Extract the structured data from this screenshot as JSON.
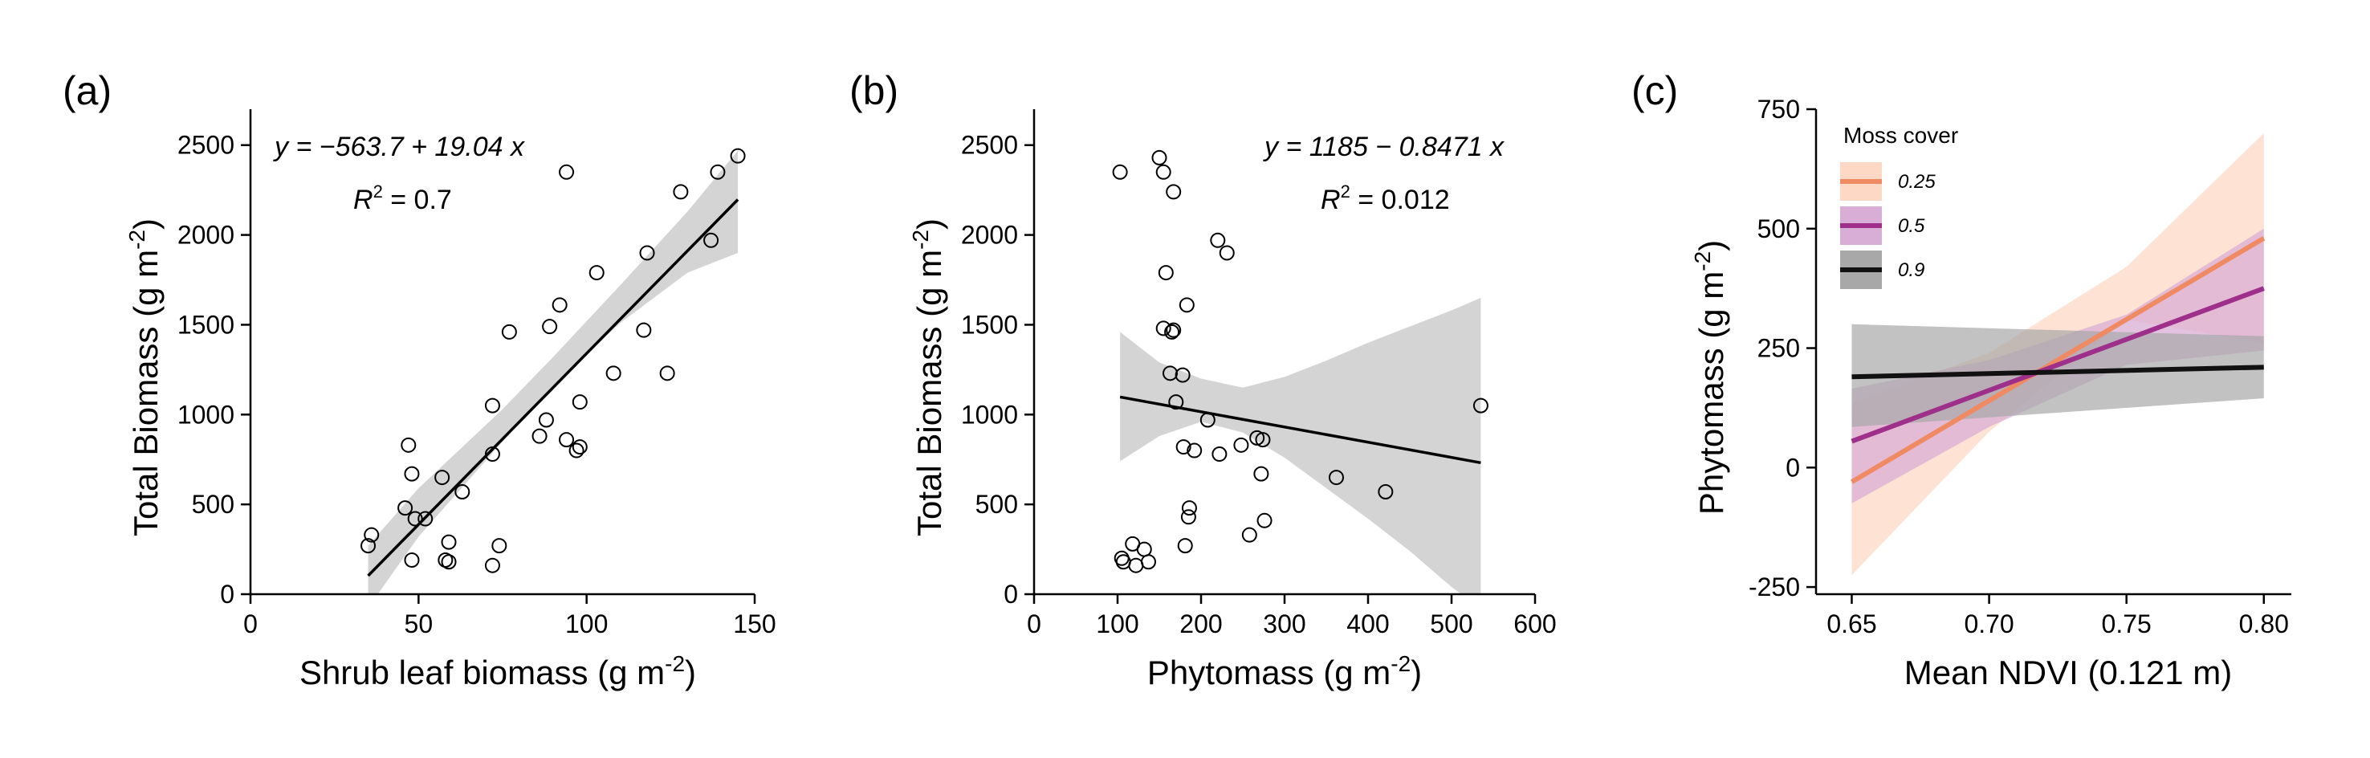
{
  "chart_data": [
    {
      "type": "scatter",
      "panel_label": "(a)",
      "xlabel": "Shrub leaf biomass (g m",
      "xlabel_sup": "-2",
      "xlabel_end": ")",
      "ylabel": "Total Biomass (g m",
      "ylabel_sup": "-2",
      "ylabel_end": ")",
      "xlim": [
        0,
        150
      ],
      "ylim": [
        0,
        2700
      ],
      "xticks": [
        0,
        50,
        100,
        150
      ],
      "yticks": [
        0,
        500,
        1000,
        1500,
        2000,
        2500
      ],
      "equation": "y = −563.7 + 19.04 x",
      "r2_label": "R",
      "r2_sup": "2",
      "r2_value": " = 0.7",
      "fit": {
        "intercept": -563.7,
        "slope": 19.04,
        "x_range": [
          35,
          145
        ]
      },
      "band": [
        [
          35,
          -75,
          270
        ],
        [
          50,
          320,
          590
        ],
        [
          75,
          850,
          1030
        ],
        [
          90,
          1160,
          1320
        ],
        [
          110,
          1510,
          1720
        ],
        [
          130,
          1790,
          2130
        ],
        [
          145,
          1900,
          2470
        ]
      ],
      "points": [
        [
          35,
          270
        ],
        [
          36,
          330
        ],
        [
          46,
          480
        ],
        [
          47,
          830
        ],
        [
          48,
          670
        ],
        [
          48,
          190
        ],
        [
          49,
          420
        ],
        [
          52,
          420
        ],
        [
          57,
          650
        ],
        [
          58,
          190
        ],
        [
          59,
          290
        ],
        [
          59,
          180
        ],
        [
          63,
          570
        ],
        [
          72,
          160
        ],
        [
          72,
          1050
        ],
        [
          72,
          780
        ],
        [
          74,
          270
        ],
        [
          77,
          1460
        ],
        [
          86,
          880
        ],
        [
          88,
          970
        ],
        [
          89,
          1490
        ],
        [
          92,
          1610
        ],
        [
          94,
          860
        ],
        [
          94,
          2350
        ],
        [
          97,
          800
        ],
        [
          98,
          820
        ],
        [
          98,
          1070
        ],
        [
          103,
          1790
        ],
        [
          108,
          1230
        ],
        [
          117,
          1470
        ],
        [
          118,
          1900
        ],
        [
          124,
          1230
        ],
        [
          128,
          2240
        ],
        [
          137,
          1970
        ],
        [
          139,
          2350
        ],
        [
          145,
          2440
        ]
      ]
    },
    {
      "type": "scatter",
      "panel_label": "(b)",
      "xlabel": "Phytomass (g m",
      "xlabel_sup": "-2",
      "xlabel_end": ")",
      "ylabel": "Total Biomass (g m",
      "ylabel_sup": "-2",
      "ylabel_end": ")",
      "xlim": [
        0,
        600
      ],
      "ylim": [
        0,
        2700
      ],
      "xticks": [
        0,
        100,
        200,
        300,
        400,
        500,
        600
      ],
      "yticks": [
        0,
        500,
        1000,
        1500,
        2000,
        2500
      ],
      "equation": "y = 1185 − 0.8471 x",
      "r2_label": "R",
      "r2_sup": "2",
      "r2_value": " = 0.012",
      "fit": {
        "intercept": 1185,
        "slope": -0.8471,
        "x_range": [
          103,
          535
        ]
      },
      "band": [
        [
          103,
          740,
          1460
        ],
        [
          150,
          880,
          1290
        ],
        [
          200,
          960,
          1200
        ],
        [
          250,
          900,
          1150
        ],
        [
          300,
          760,
          1210
        ],
        [
          350,
          590,
          1300
        ],
        [
          400,
          420,
          1400
        ],
        [
          450,
          240,
          1490
        ],
        [
          500,
          40,
          1580
        ],
        [
          535,
          -80,
          1650
        ]
      ],
      "points": [
        [
          103,
          2350
        ],
        [
          105,
          200
        ],
        [
          107,
          180
        ],
        [
          118,
          280
        ],
        [
          122,
          160
        ],
        [
          132,
          250
        ],
        [
          137,
          180
        ],
        [
          150,
          2430
        ],
        [
          155,
          2350
        ],
        [
          155,
          1480
        ],
        [
          158,
          1790
        ],
        [
          163,
          1230
        ],
        [
          165,
          1460
        ],
        [
          167,
          1470
        ],
        [
          167,
          2240
        ],
        [
          170,
          1070
        ],
        [
          178,
          1220
        ],
        [
          179,
          820
        ],
        [
          181,
          270
        ],
        [
          183,
          1610
        ],
        [
          185,
          430
        ],
        [
          186,
          480
        ],
        [
          192,
          800
        ],
        [
          208,
          970
        ],
        [
          220,
          1970
        ],
        [
          222,
          780
        ],
        [
          231,
          1900
        ],
        [
          248,
          830
        ],
        [
          258,
          330
        ],
        [
          267,
          870
        ],
        [
          272,
          670
        ],
        [
          274,
          860
        ],
        [
          276,
          410
        ],
        [
          362,
          650
        ],
        [
          421,
          570
        ],
        [
          535,
          1050
        ]
      ]
    },
    {
      "type": "line",
      "panel_label": "(c)",
      "xlabel": "Mean NDVI (0.121 m)",
      "ylabel": "Phytomass (g m",
      "ylabel_sup": "-2",
      "ylabel_end": ")",
      "xlim": [
        0.637,
        0.81
      ],
      "ylim": [
        -265,
        750
      ],
      "xticks": [
        0.65,
        0.7,
        0.75,
        0.8
      ],
      "xtick_labels": [
        "0.65",
        "0.70",
        "0.75",
        "0.80"
      ],
      "yticks": [
        -250,
        0,
        250,
        500,
        750
      ],
      "ytick_labels": [
        "-250",
        "0",
        "250",
        "500",
        "750"
      ],
      "legend_title": "Moss cover",
      "legend_position": "top-left",
      "series": [
        {
          "name": "0.25",
          "color": "#ef8a62",
          "band_color": "#fdd8c4",
          "x": [
            0.65,
            0.8
          ],
          "y": [
            -30,
            480
          ],
          "band": [
            [
              0.65,
              -225,
              135
            ],
            [
              0.7,
              75,
              240
            ],
            [
              0.75,
              310,
              420
            ],
            [
              0.8,
              260,
              700
            ]
          ]
        },
        {
          "name": "0.5",
          "color": "#9e2f8a",
          "band_color": "#d9aed6",
          "x": [
            0.65,
            0.8
          ],
          "y": [
            55,
            375
          ],
          "band": [
            [
              0.65,
              -75,
              165
            ],
            [
              0.7,
              85,
              225
            ],
            [
              0.75,
              215,
              320
            ],
            [
              0.8,
              245,
              500
            ]
          ]
        },
        {
          "name": "0.9",
          "color": "#111111",
          "band_color": "#a8a8a8",
          "x": [
            0.65,
            0.8
          ],
          "y": [
            190,
            210
          ],
          "band": [
            [
              0.65,
              85,
              300
            ],
            [
              0.8,
              145,
              275
            ]
          ]
        }
      ]
    }
  ]
}
